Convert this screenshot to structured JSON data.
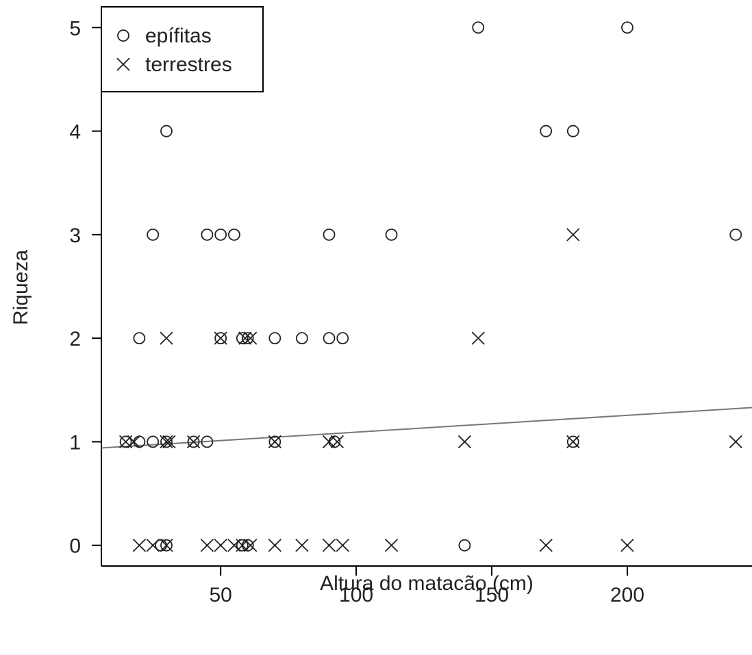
{
  "chart_data": {
    "type": "scatter",
    "xlabel": "Altura do matacão (cm)",
    "ylabel": "Riqueza",
    "xlim": [
      6,
      246
    ],
    "ylim": [
      -0.2,
      5.2
    ],
    "xticks": [
      50,
      100,
      150,
      200
    ],
    "yticks": [
      0,
      1,
      2,
      3,
      4,
      5
    ],
    "grid": false,
    "legend_position": "top-left",
    "series": [
      {
        "name": "epífitas",
        "marker": "circle",
        "points": [
          [
            30,
            4
          ],
          [
            25,
            3
          ],
          [
            45,
            3
          ],
          [
            50,
            3
          ],
          [
            55,
            3
          ],
          [
            90,
            3
          ],
          [
            113,
            3
          ],
          [
            240,
            3
          ],
          [
            145,
            5
          ],
          [
            200,
            5
          ],
          [
            170,
            4
          ],
          [
            180,
            4
          ],
          [
            20,
            2
          ],
          [
            50,
            2
          ],
          [
            58,
            2
          ],
          [
            60,
            2
          ],
          [
            70,
            2
          ],
          [
            80,
            2
          ],
          [
            90,
            2
          ],
          [
            95,
            2
          ],
          [
            15,
            1
          ],
          [
            20,
            1
          ],
          [
            25,
            1
          ],
          [
            30,
            1
          ],
          [
            40,
            1
          ],
          [
            45,
            1
          ],
          [
            70,
            1
          ],
          [
            92,
            1
          ],
          [
            180,
            1
          ],
          [
            28,
            0
          ],
          [
            30,
            0
          ],
          [
            58,
            0
          ],
          [
            60,
            0
          ],
          [
            140,
            0
          ]
        ]
      },
      {
        "name": "terrestres",
        "marker": "cross",
        "points": [
          [
            180,
            3
          ],
          [
            30,
            2
          ],
          [
            50,
            2
          ],
          [
            59,
            2
          ],
          [
            61,
            2
          ],
          [
            145,
            2
          ],
          [
            15,
            1
          ],
          [
            18,
            1
          ],
          [
            30,
            1
          ],
          [
            31,
            1
          ],
          [
            40,
            1
          ],
          [
            70,
            1
          ],
          [
            90,
            1
          ],
          [
            93,
            1
          ],
          [
            140,
            1
          ],
          [
            180,
            1
          ],
          [
            240,
            1
          ],
          [
            20,
            0
          ],
          [
            25,
            0
          ],
          [
            30,
            0
          ],
          [
            45,
            0
          ],
          [
            50,
            0
          ],
          [
            55,
            0
          ],
          [
            58,
            0
          ],
          [
            61,
            0
          ],
          [
            70,
            0
          ],
          [
            80,
            0
          ],
          [
            90,
            0
          ],
          [
            95,
            0
          ],
          [
            113,
            0
          ],
          [
            170,
            0
          ],
          [
            200,
            0
          ]
        ]
      }
    ],
    "trend_line": {
      "x": [
        6,
        246
      ],
      "y": [
        0.94,
        1.33
      ]
    }
  }
}
